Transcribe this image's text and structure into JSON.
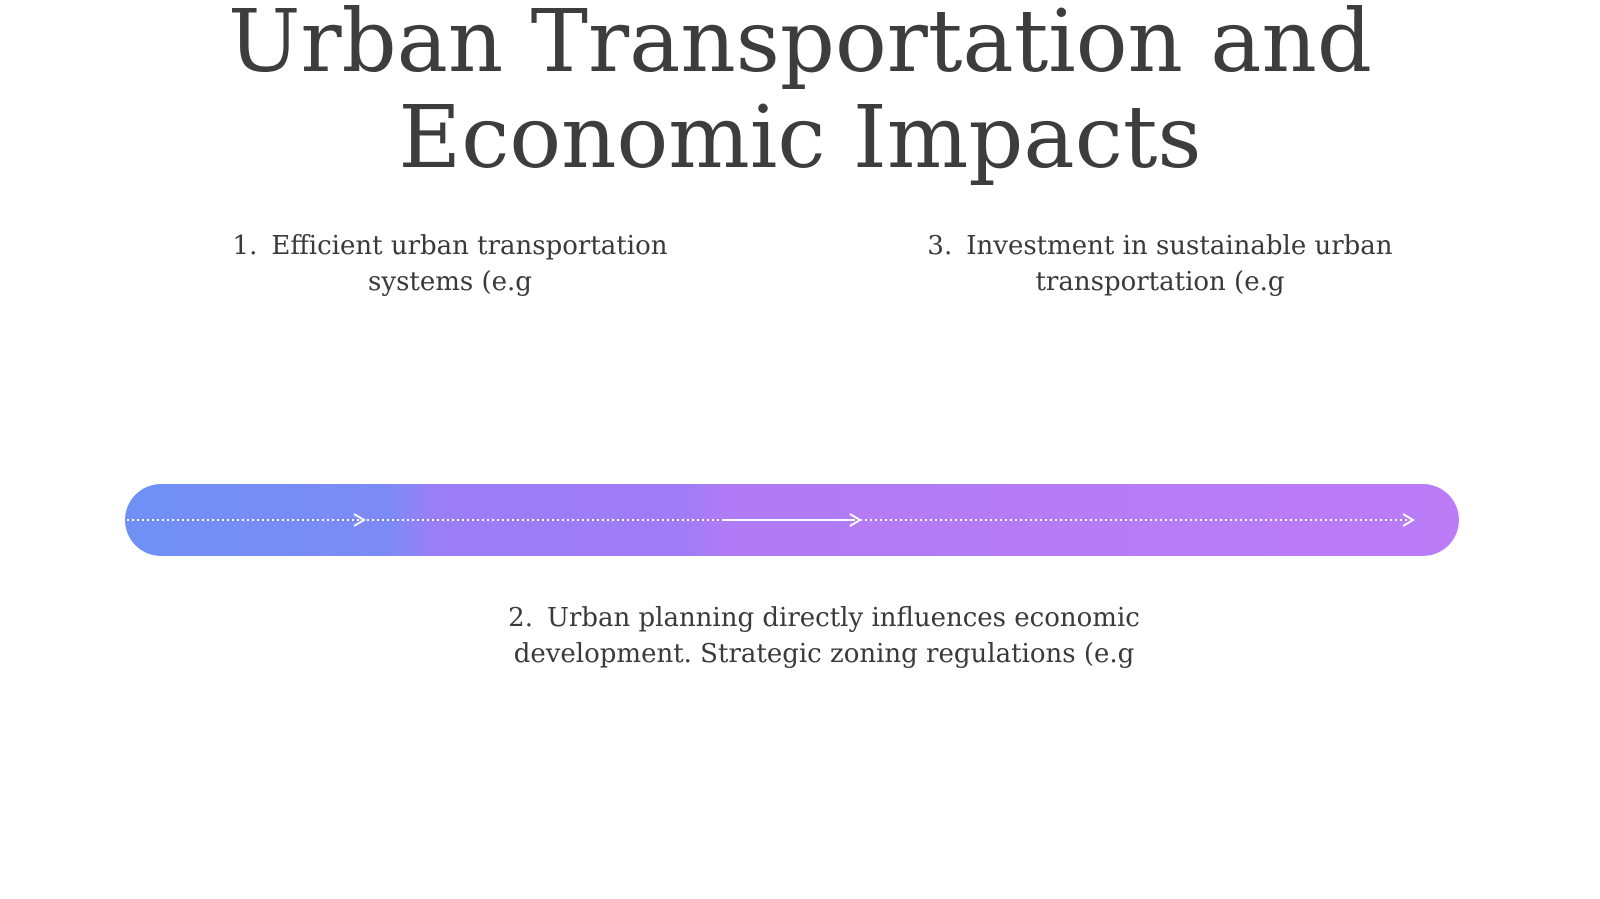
{
  "title": "Urban Transportation and Economic Impacts",
  "items": [
    {
      "number": "1.",
      "text": "Efficient urban transportation systems (e.g"
    },
    {
      "number": "2.",
      "text": "Urban planning directly influences economic development.  Strategic zoning regulations (e.g"
    },
    {
      "number": "3.",
      "text": "Investment in sustainable urban transportation (e.g"
    }
  ]
}
